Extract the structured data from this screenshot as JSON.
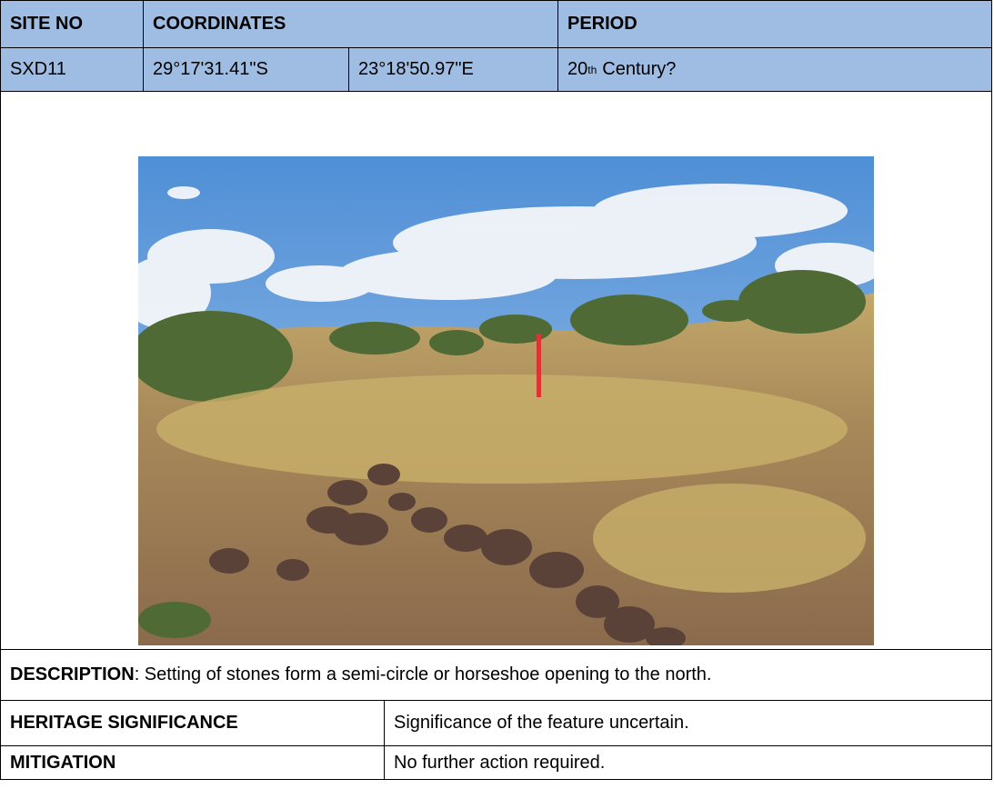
{
  "header": {
    "site_no": "SITE NO",
    "coordinates": "COORDINATES",
    "period": "PERIOD"
  },
  "site": {
    "site_no": "SXD11",
    "latitude": "29°17'31.41\"S",
    "longitude": "23°18'50.97\"E",
    "period": [
      "20",
      "th",
      "Century?"
    ]
  },
  "description": {
    "label": "DESCRIPTION",
    "text": ": Setting of stones form a semi-circle or horseshoe opening to the north."
  },
  "rows": [
    [
      "HERITAGE SIGNIFICANCE",
      "Significance of the feature uncertain."
    ],
    [
      "MITIGATION",
      "No further action required."
    ]
  ]
}
